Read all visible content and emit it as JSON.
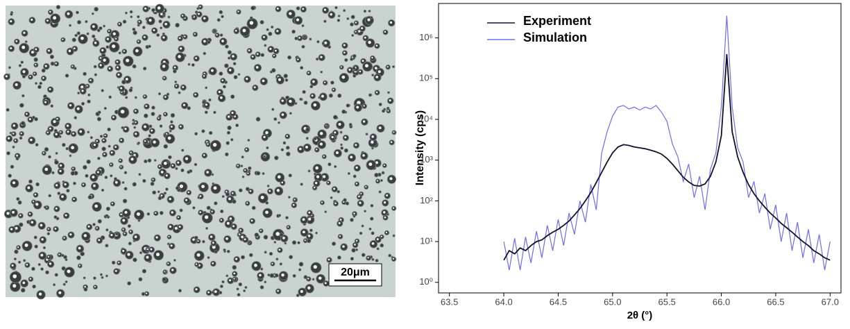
{
  "micrograph": {
    "scale_bar": "20μm"
  },
  "chart_data": {
    "type": "line",
    "xlabel": "2θ (°)",
    "ylabel": "Intensity (cps)",
    "xlim": [
      63.4,
      67.1
    ],
    "ylim": [
      0.55,
      7000000
    ],
    "log_y": true,
    "legend": "upper left",
    "xticks": [
      63.5,
      {
        "value": 64,
        "label": "64.0"
      },
      64.5,
      {
        "value": 65,
        "label": "65.0"
      },
      65.5,
      {
        "value": 66,
        "label": "66.0"
      },
      66.5,
      {
        "value": 67,
        "label": "67.0"
      }
    ],
    "yticks": [
      {
        "value": 1,
        "label": "10⁰"
      },
      {
        "value": 10,
        "label": "10¹"
      },
      {
        "value": 100,
        "label": "10²"
      },
      {
        "value": 1000,
        "label": "10³"
      },
      {
        "value": 10000,
        "label": "10⁴"
      },
      {
        "value": 100000,
        "label": "10⁵"
      },
      {
        "value": 1000000,
        "label": "10⁶"
      }
    ],
    "x": [
      64.0,
      64.05,
      64.1,
      64.15,
      64.2,
      64.25,
      64.3,
      64.35,
      64.4,
      64.45,
      64.5,
      64.55,
      64.6,
      64.65,
      64.7,
      64.75,
      64.8,
      64.85,
      64.9,
      64.95,
      65.0,
      65.05,
      65.1,
      65.15,
      65.2,
      65.25,
      65.3,
      65.35,
      65.4,
      65.45,
      65.5,
      65.55,
      65.6,
      65.65,
      65.7,
      65.75,
      65.8,
      65.85,
      65.9,
      65.95,
      66.0,
      66.05,
      66.1,
      66.15,
      66.2,
      66.25,
      66.3,
      66.35,
      66.4,
      66.45,
      66.5,
      66.55,
      66.6,
      66.65,
      66.7,
      66.75,
      66.8,
      66.85,
      66.9,
      66.95,
      67.0
    ],
    "series": [
      {
        "name": "Experiment",
        "color": "#101028",
        "values": [
          3.5,
          6,
          5,
          7,
          6,
          8,
          10,
          11,
          14,
          17,
          20,
          25,
          32,
          45,
          65,
          100,
          160,
          280,
          500,
          900,
          1500,
          2100,
          2400,
          2300,
          2100,
          2000,
          1900,
          1750,
          1600,
          1400,
          1100,
          800,
          550,
          380,
          290,
          240,
          230,
          260,
          400,
          900,
          4000,
          400000,
          5000,
          1200,
          500,
          250,
          150,
          100,
          70,
          50,
          38,
          28,
          22,
          17,
          13,
          10,
          8,
          6,
          5,
          4,
          3.5
        ]
      },
      {
        "name": "Simulation",
        "color": "#6b6bf5",
        "values": [
          10,
          2,
          12,
          2,
          13,
          3,
          18,
          4,
          25,
          6,
          35,
          8,
          50,
          15,
          100,
          30,
          250,
          60,
          1500,
          5000,
          12000,
          20000,
          22000,
          18000,
          20000,
          17000,
          20000,
          18000,
          22000,
          15000,
          9000,
          2500,
          1200,
          300,
          800,
          120,
          400,
          60,
          600,
          1500,
          20000,
          3500000,
          20000,
          2000,
          900,
          120,
          300,
          50,
          150,
          20,
          80,
          10,
          50,
          6,
          30,
          4,
          20,
          3,
          15,
          2,
          10
        ]
      }
    ]
  }
}
